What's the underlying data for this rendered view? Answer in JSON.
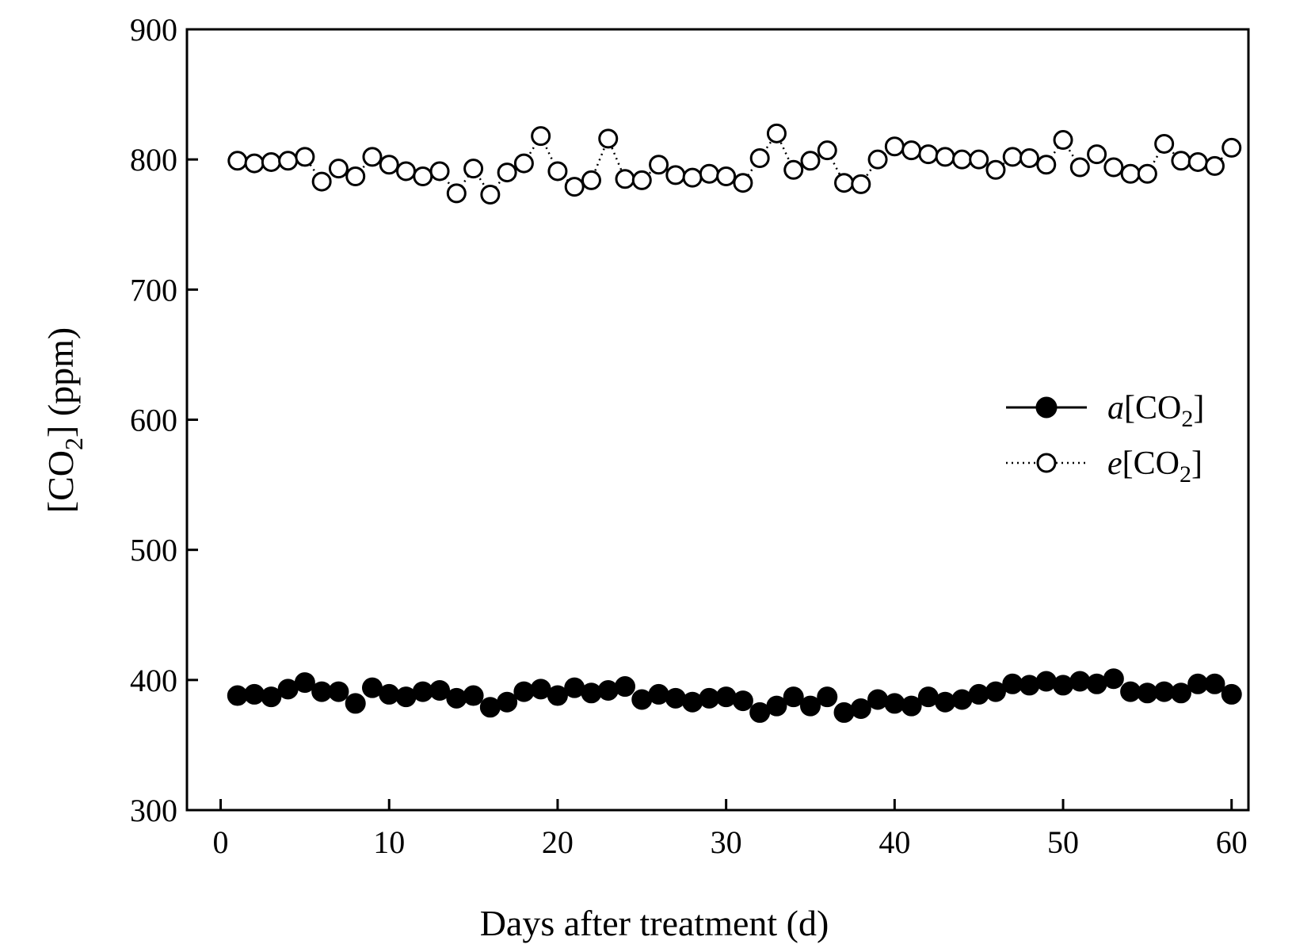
{
  "chart_data": {
    "type": "scatter",
    "title": "",
    "xlabel": "Days after treatment (d)",
    "ylabel": {
      "pre": "[CO",
      "sub": "2",
      "post": "] (ppm)"
    },
    "xlim": [
      -2,
      61
    ],
    "ylim": [
      300,
      900
    ],
    "xticks": [
      0,
      10,
      20,
      30,
      40,
      50,
      60
    ],
    "yticks": [
      300,
      400,
      500,
      600,
      700,
      800,
      900
    ],
    "grid": false,
    "legend_position": "right",
    "x": [
      1,
      2,
      3,
      4,
      5,
      6,
      7,
      8,
      9,
      10,
      11,
      12,
      13,
      14,
      15,
      16,
      17,
      18,
      19,
      20,
      21,
      22,
      23,
      24,
      25,
      26,
      27,
      28,
      29,
      30,
      31,
      32,
      33,
      34,
      35,
      36,
      37,
      38,
      39,
      40,
      41,
      42,
      43,
      44,
      45,
      46,
      47,
      48,
      49,
      50,
      51,
      52,
      53,
      54,
      55,
      56,
      57,
      58,
      59,
      60
    ],
    "series": [
      {
        "name": "a[CO2]",
        "legend_label": {
          "italic": "a",
          "pre": "[CO",
          "sub": "2",
          "post": "]"
        },
        "marker": "filled-circle",
        "line": "none",
        "values": [
          388,
          389,
          387,
          393,
          398,
          391,
          391,
          382,
          394,
          389,
          387,
          391,
          392,
          386,
          388,
          379,
          383,
          391,
          393,
          388,
          394,
          390,
          392,
          395,
          385,
          389,
          386,
          383,
          386,
          387,
          384,
          375,
          380,
          387,
          380,
          387,
          375,
          378,
          385,
          382,
          380,
          387,
          383,
          385,
          389,
          391,
          397,
          396,
          399,
          396,
          399,
          397,
          401,
          391,
          390,
          391,
          390,
          397,
          397,
          389
        ]
      },
      {
        "name": "e[CO2]",
        "legend_label": {
          "italic": "e",
          "pre": "[CO",
          "sub": "2",
          "post": "]"
        },
        "marker": "open-circle",
        "line": "dotted",
        "values": [
          799,
          797,
          798,
          799,
          802,
          783,
          793,
          787,
          802,
          796,
          791,
          787,
          791,
          774,
          793,
          773,
          790,
          797,
          818,
          791,
          779,
          784,
          816,
          785,
          784,
          796,
          788,
          786,
          789,
          787,
          782,
          801,
          820,
          792,
          799,
          807,
          782,
          781,
          800,
          810,
          807,
          804,
          802,
          800,
          800,
          792,
          802,
          801,
          796,
          815,
          794,
          804,
          794,
          789,
          789,
          812,
          799,
          798,
          795,
          809
        ]
      }
    ]
  }
}
